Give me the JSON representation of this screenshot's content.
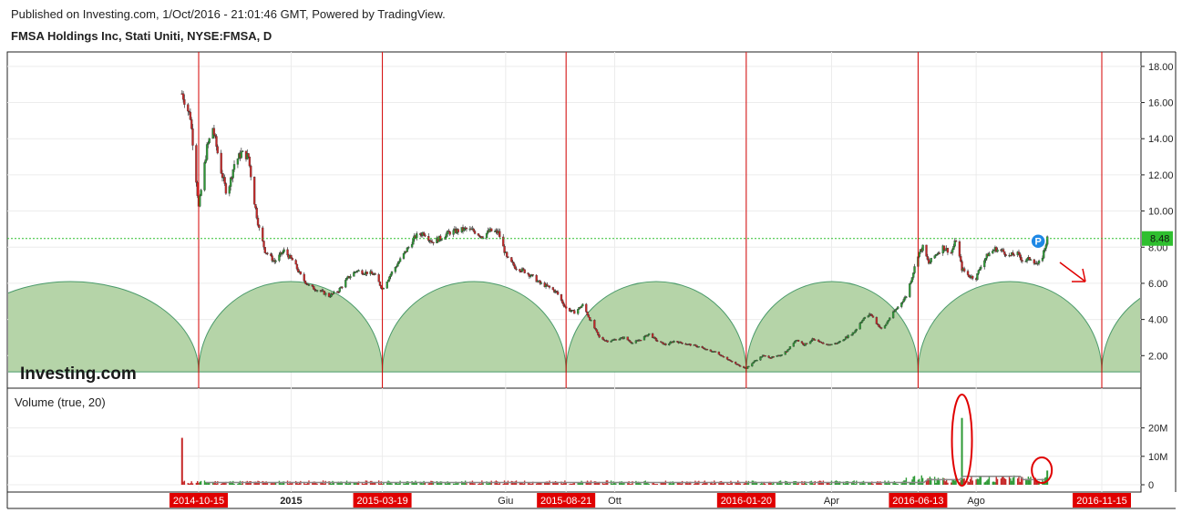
{
  "header": {
    "published": "Published on Investing.com, 1/Oct/2016 - 21:01:46 GMT, Powered by TradingView.",
    "symbol": "FMSA Holdings Inc, Stati Uniti, NYSE:FMSA, D"
  },
  "chart_data": {
    "type": "candlestick",
    "price_axis": {
      "ticks": [
        "18.00",
        "16.00",
        "14.00",
        "12.00",
        "10.00",
        "8.00",
        "6.00",
        "4.00",
        "2.00"
      ],
      "range": [
        0.2,
        18.8
      ]
    },
    "last_price": {
      "value": 8.48,
      "label": "8.48"
    },
    "price_path": [
      [
        "2014-10-01",
        16.5
      ],
      [
        "2014-10-08",
        15.2
      ],
      [
        "2014-10-12",
        12.5
      ],
      [
        "2014-10-15",
        10.2
      ],
      [
        "2014-10-22",
        13.5
      ],
      [
        "2014-10-27",
        14.6
      ],
      [
        "2014-11-03",
        12.2
      ],
      [
        "2014-11-08",
        10.9
      ],
      [
        "2014-11-14",
        12.6
      ],
      [
        "2014-11-20",
        13.2
      ],
      [
        "2014-11-26",
        13.0
      ],
      [
        "2014-12-01",
        10.5
      ],
      [
        "2014-12-05",
        9.0
      ],
      [
        "2014-12-10",
        7.8
      ],
      [
        "2014-12-18",
        7.2
      ],
      [
        "2014-12-26",
        7.8
      ],
      [
        "2015-01-03",
        7.2
      ],
      [
        "2015-01-10",
        6.3
      ],
      [
        "2015-01-17",
        5.8
      ],
      [
        "2015-01-25",
        5.6
      ],
      [
        "2015-02-02",
        5.3
      ],
      [
        "2015-02-10",
        5.6
      ],
      [
        "2015-02-18",
        6.3
      ],
      [
        "2015-02-25",
        6.7
      ],
      [
        "2015-03-05",
        6.6
      ],
      [
        "2015-03-12",
        6.5
      ],
      [
        "2015-03-19",
        5.7
      ],
      [
        "2015-03-26",
        6.5
      ],
      [
        "2015-04-02",
        7.2
      ],
      [
        "2015-04-09",
        7.9
      ],
      [
        "2015-04-16",
        8.6
      ],
      [
        "2015-04-23",
        8.8
      ],
      [
        "2015-04-30",
        8.3
      ],
      [
        "2015-05-07",
        8.5
      ],
      [
        "2015-05-14",
        8.8
      ],
      [
        "2015-05-21",
        8.9
      ],
      [
        "2015-05-28",
        9.0
      ],
      [
        "2015-06-04",
        8.9
      ],
      [
        "2015-06-11",
        8.6
      ],
      [
        "2015-06-18",
        8.9
      ],
      [
        "2015-06-25",
        8.8
      ],
      [
        "2015-07-02",
        7.4
      ],
      [
        "2015-07-09",
        6.9
      ],
      [
        "2015-07-16",
        6.7
      ],
      [
        "2015-07-23",
        6.4
      ],
      [
        "2015-07-30",
        6.0
      ],
      [
        "2015-08-06",
        5.8
      ],
      [
        "2015-08-13",
        5.5
      ],
      [
        "2015-08-21",
        4.6
      ],
      [
        "2015-08-28",
        4.4
      ],
      [
        "2015-09-04",
        4.8
      ],
      [
        "2015-09-11",
        3.9
      ],
      [
        "2015-09-18",
        3.0
      ],
      [
        "2015-09-25",
        2.8
      ],
      [
        "2015-10-02",
        2.9
      ],
      [
        "2015-10-09",
        3.0
      ],
      [
        "2015-10-16",
        2.7
      ],
      [
        "2015-10-23",
        2.9
      ],
      [
        "2015-10-30",
        3.2
      ],
      [
        "2015-11-06",
        2.8
      ],
      [
        "2015-11-13",
        2.6
      ],
      [
        "2015-11-20",
        2.8
      ],
      [
        "2015-11-27",
        2.7
      ],
      [
        "2015-12-04",
        2.6
      ],
      [
        "2015-12-11",
        2.5
      ],
      [
        "2015-12-18",
        2.3
      ],
      [
        "2015-12-25",
        2.2
      ],
      [
        "2016-01-02",
        1.9
      ],
      [
        "2016-01-09",
        1.6
      ],
      [
        "2016-01-20",
        1.3
      ],
      [
        "2016-01-27",
        1.7
      ],
      [
        "2016-02-03",
        2.0
      ],
      [
        "2016-02-10",
        1.9
      ],
      [
        "2016-02-17",
        2.0
      ],
      [
        "2016-02-24",
        2.3
      ],
      [
        "2016-03-02",
        2.9
      ],
      [
        "2016-03-09",
        2.6
      ],
      [
        "2016-03-16",
        2.9
      ],
      [
        "2016-03-23",
        2.7
      ],
      [
        "2016-03-30",
        2.6
      ],
      [
        "2016-04-06",
        2.7
      ],
      [
        "2016-04-13",
        3.0
      ],
      [
        "2016-04-20",
        3.3
      ],
      [
        "2016-04-27",
        4.0
      ],
      [
        "2016-05-04",
        4.3
      ],
      [
        "2016-05-09",
        3.8
      ],
      [
        "2016-05-14",
        3.4
      ],
      [
        "2016-05-20",
        4.1
      ],
      [
        "2016-05-27",
        4.7
      ],
      [
        "2016-06-03",
        5.3
      ],
      [
        "2016-06-08",
        6.4
      ],
      [
        "2016-06-13",
        7.6
      ],
      [
        "2016-06-17",
        8.0
      ],
      [
        "2016-06-22",
        7.1
      ],
      [
        "2016-06-28",
        7.6
      ],
      [
        "2016-07-04",
        8.0
      ],
      [
        "2016-07-11",
        7.7
      ],
      [
        "2016-07-15",
        8.4
      ],
      [
        "2016-07-20",
        6.8
      ],
      [
        "2016-07-26",
        6.4
      ],
      [
        "2016-08-01",
        6.3
      ],
      [
        "2016-08-05",
        7.0
      ],
      [
        "2016-08-11",
        7.6
      ],
      [
        "2016-08-17",
        7.9
      ],
      [
        "2016-08-23",
        7.8
      ],
      [
        "2016-08-29",
        7.5
      ],
      [
        "2016-09-04",
        7.7
      ],
      [
        "2016-09-10",
        7.2
      ],
      [
        "2016-09-16",
        7.4
      ],
      [
        "2016-09-22",
        7.0
      ],
      [
        "2016-09-26",
        7.5
      ],
      [
        "2016-09-30",
        8.48
      ]
    ],
    "volume": {
      "label": "Volume (true, 20)",
      "ticks": [
        "20M",
        "10M",
        "0"
      ],
      "range": [
        0,
        25
      ],
      "spikes": [
        {
          "date": "2014-10-01",
          "value": 16.5,
          "color": "red"
        },
        {
          "date": "2016-07-20",
          "value": 23.5,
          "color": "green"
        },
        {
          "date": "2016-09-30",
          "value": 5.0,
          "color": "green"
        }
      ],
      "typical": 0.9
    },
    "cycle_lines": [
      "2014-10-15",
      "2015-03-19",
      "2015-08-21",
      "2016-01-20",
      "2016-06-13",
      "2016-11-15"
    ],
    "cycle_arcs": [
      {
        "start": "2014-03-13",
        "end": "2014-10-15"
      },
      {
        "start": "2014-10-15",
        "end": "2015-03-19"
      },
      {
        "start": "2015-03-19",
        "end": "2015-08-21"
      },
      {
        "start": "2015-08-21",
        "end": "2016-01-20"
      },
      {
        "start": "2016-01-20",
        "end": "2016-06-13"
      },
      {
        "start": "2016-06-13",
        "end": "2016-11-15"
      },
      {
        "start": "2016-11-15",
        "end": "2017-04-18"
      }
    ],
    "arc_height": 5.0,
    "arc_base": 1.1,
    "time_axis": {
      "labels": [
        {
          "date": "2014-10-15",
          "text": "2014-10-15",
          "highlight": true
        },
        {
          "date": "2015-01-01",
          "text": "2015",
          "highlight": false,
          "bold": true
        },
        {
          "date": "2015-03-19",
          "text": "2015-03-19",
          "highlight": true
        },
        {
          "date": "2015-07-01",
          "text": "Giu",
          "highlight": false
        },
        {
          "date": "2015-08-21",
          "text": "2015-08-21",
          "highlight": true
        },
        {
          "date": "2015-10-01",
          "text": "Ott",
          "highlight": false
        },
        {
          "date": "2016-01-20",
          "text": "2016-01-20",
          "highlight": true
        },
        {
          "date": "2016-04-01",
          "text": "Apr",
          "highlight": false
        },
        {
          "date": "2016-06-13",
          "text": "2016-06-13",
          "highlight": true
        },
        {
          "date": "2016-08-01",
          "text": "Ago",
          "highlight": false
        },
        {
          "date": "2016-11-15",
          "text": "2016-11-15",
          "highlight": true
        }
      ]
    },
    "logo": "Investing.com",
    "marker": {
      "text": "P",
      "date": "2016-09-30"
    },
    "colors": {
      "up": "#2e9a36",
      "down": "#c62828",
      "cycle": "#d40000",
      "arc_fill": "#b5d4a8",
      "arc_stroke": "#4a9a6a",
      "highlight": "#e00000",
      "last_line": "#2fbf2f",
      "volume_ma": "#8a8a8a",
      "annotation": "#e00000",
      "marker": "#1e88e5"
    }
  }
}
